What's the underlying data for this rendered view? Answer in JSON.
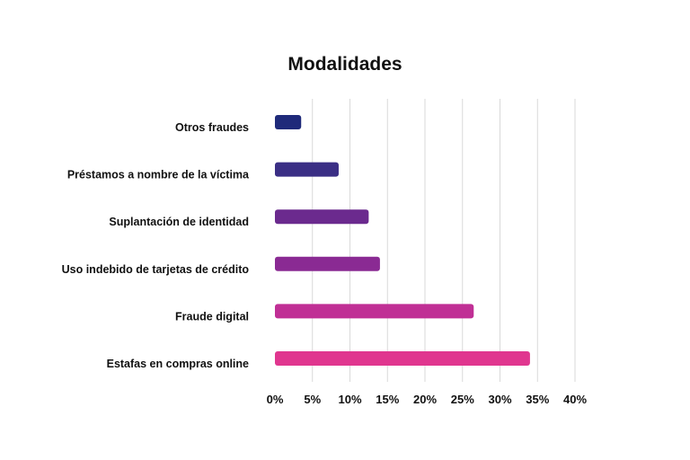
{
  "chart_data": {
    "type": "bar",
    "orientation": "horizontal",
    "title": "Modalidades",
    "xlabel": "",
    "ylabel": "",
    "categories": [
      "Otros fraudes",
      "Préstamos a nombre de la víctima",
      "Suplantación de identidad",
      "Uso indebido de tarjetas de crédito",
      "Fraude digital",
      "Estafas en compras online"
    ],
    "values": [
      3.5,
      8.5,
      12.5,
      14,
      26.5,
      34
    ],
    "value_unit": "%",
    "xlim": [
      0,
      40
    ],
    "ticks": [
      "0%",
      "5%",
      "10%",
      "15%",
      "20%",
      "25%",
      "30%",
      "35%",
      "40%"
    ],
    "grid": true,
    "legend": "none",
    "bar_colors": [
      "#1f2a7a",
      "#3b2f85",
      "#6b2a8e",
      "#8a2a93",
      "#c02f95",
      "#e0368f"
    ]
  }
}
